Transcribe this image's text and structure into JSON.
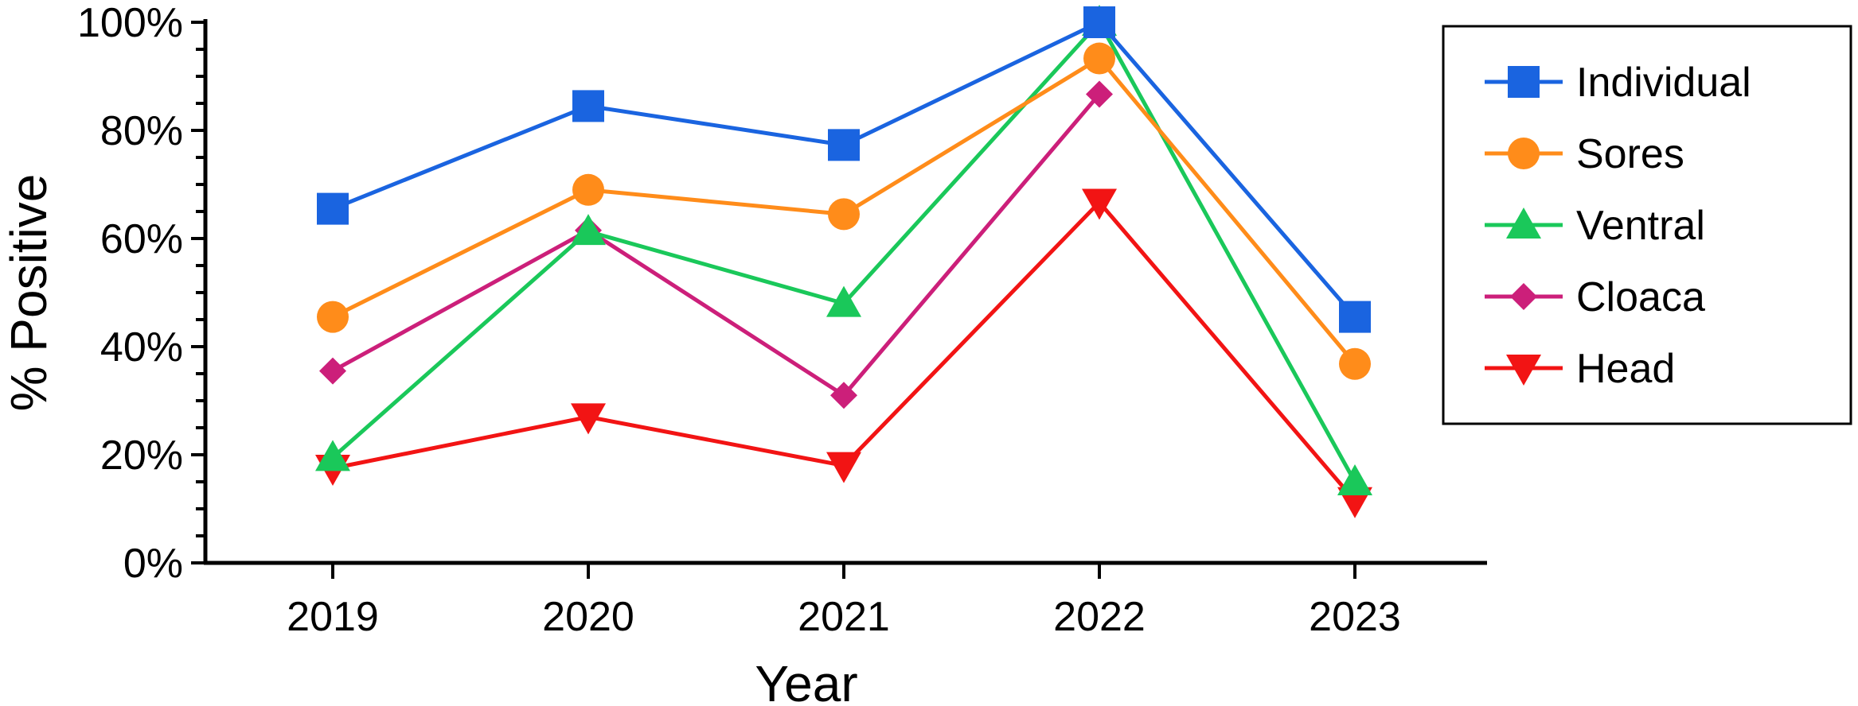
{
  "chart_data": {
    "type": "line",
    "title": "",
    "xlabel": "Year",
    "ylabel": "% Positive",
    "categories": [
      "2019",
      "2020",
      "2021",
      "2022",
      "2023"
    ],
    "ylim": [
      0,
      100
    ],
    "yticks": [
      0,
      20,
      40,
      60,
      80,
      100
    ],
    "ytick_labels": [
      "0%",
      "20%",
      "40%",
      "60%",
      "80%",
      "100%"
    ],
    "y_minor_step": 5,
    "grid": false,
    "legend_position": "right",
    "series": [
      {
        "name": "Individual",
        "values": [
          65.5,
          84.5,
          77.3,
          100,
          45.5
        ],
        "color": "#1a64e0",
        "marker": "square"
      },
      {
        "name": "Sores",
        "values": [
          45.5,
          69.0,
          64.5,
          93.3,
          36.8
        ],
        "color": "#ff8c1a",
        "marker": "circle"
      },
      {
        "name": "Ventral",
        "values": [
          19.5,
          61.3,
          48.0,
          100,
          15.0
        ],
        "color": "#1ac85a",
        "marker": "triangle-up"
      },
      {
        "name": "Cloaca",
        "values": [
          35.5,
          61.5,
          31.0,
          86.7,
          null
        ],
        "color": "#cc1f7a",
        "marker": "diamond"
      },
      {
        "name": "Head",
        "values": [
          17.5,
          27.0,
          18.0,
          66.7,
          11.5
        ],
        "color": "#f21414",
        "marker": "triangle-down"
      }
    ]
  }
}
